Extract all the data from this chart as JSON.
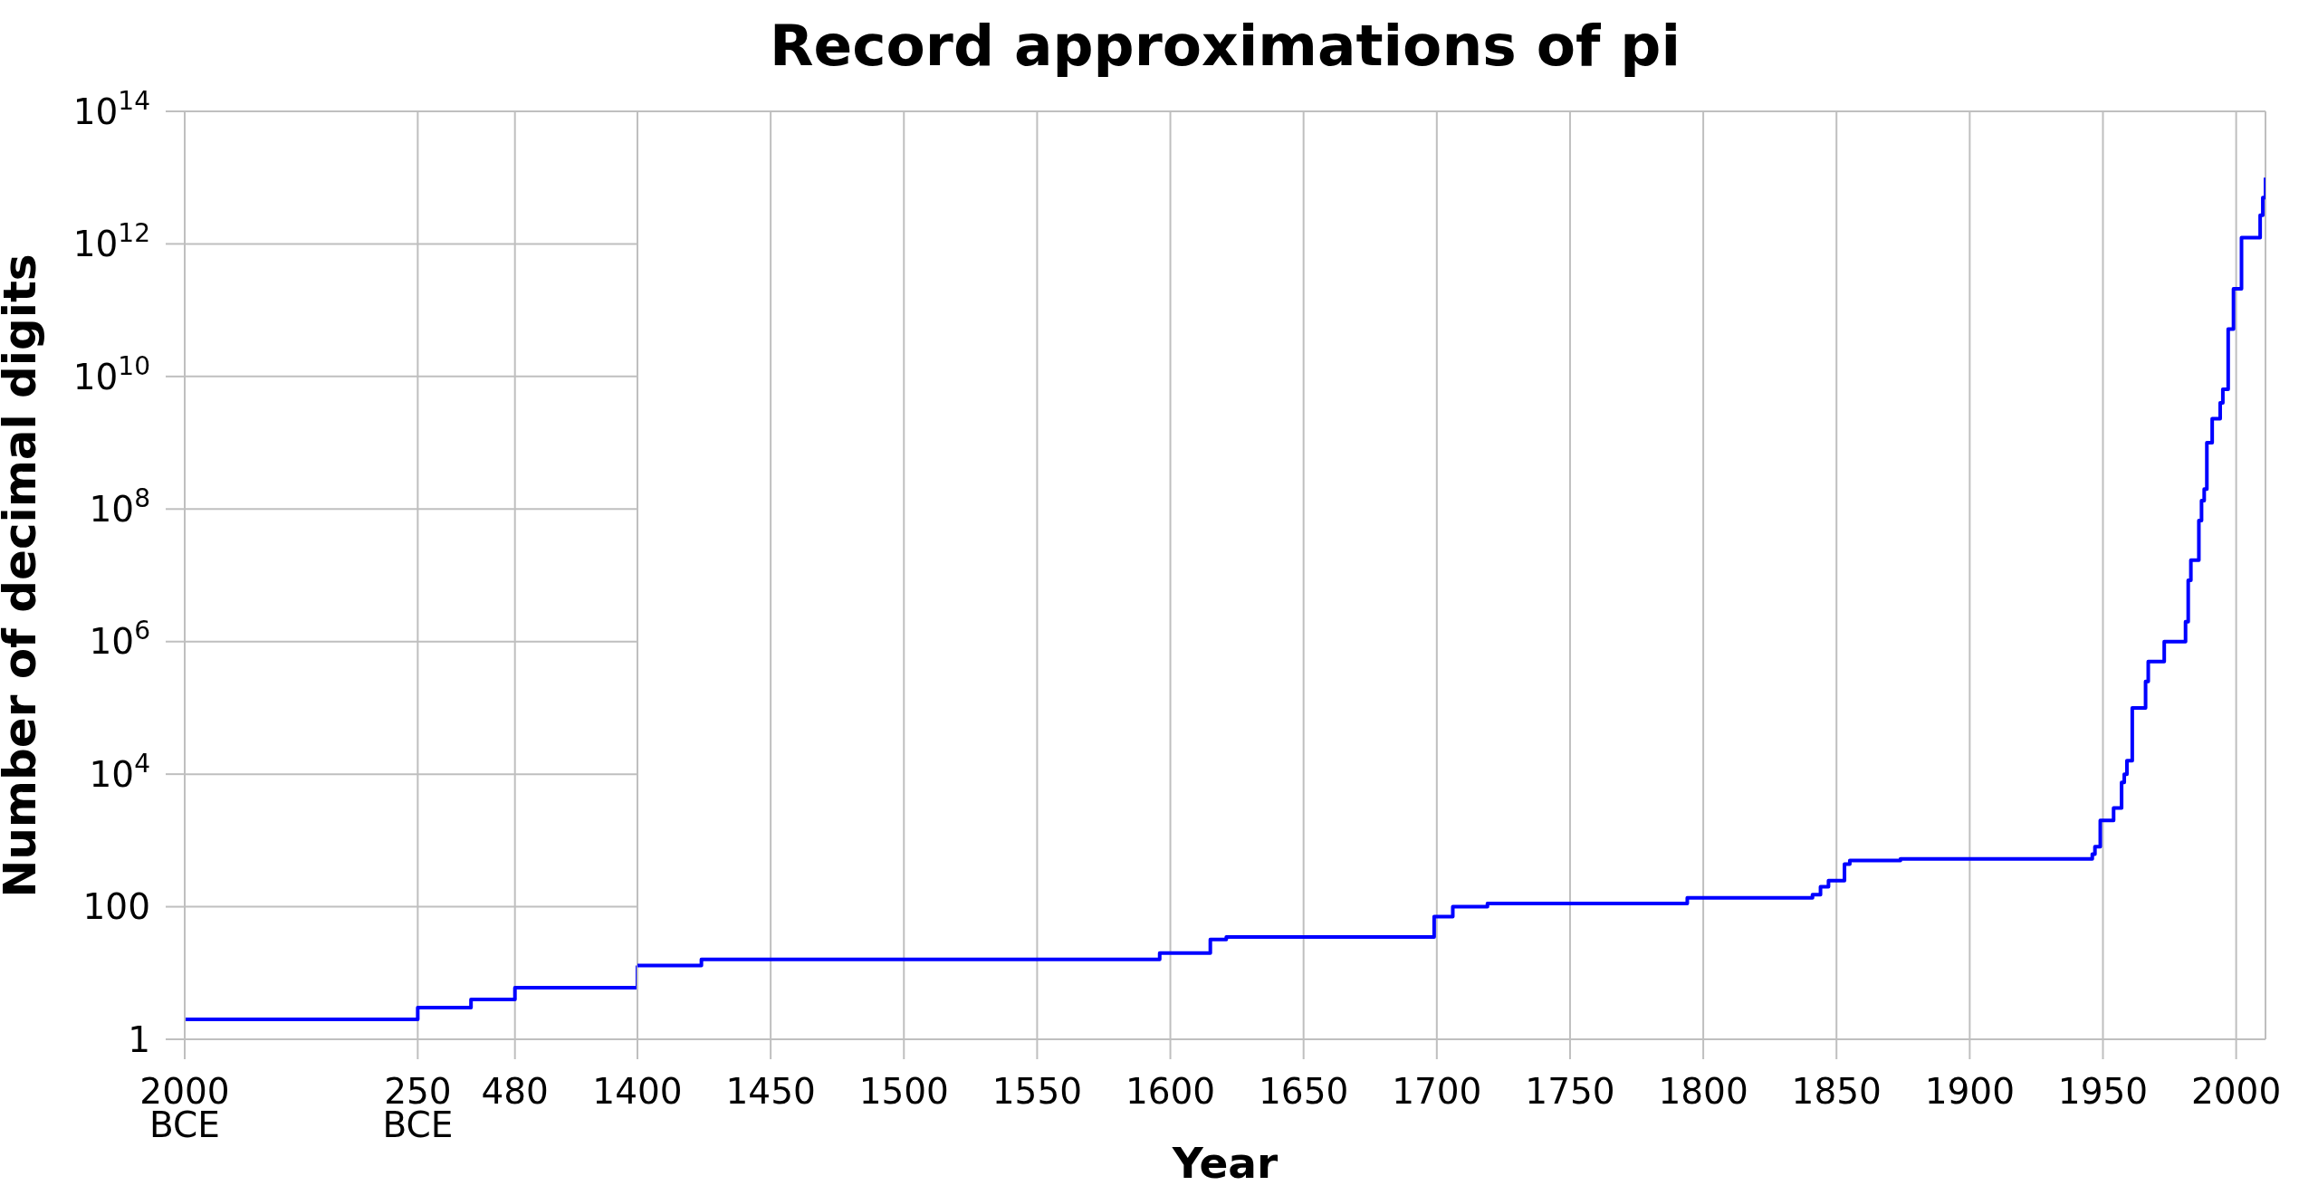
{
  "chart_data": [
    {
      "type": "step",
      "ylabel": "Number of decimal digits",
      "x": [
        -2000,
        -250,
        150,
        480,
        1400
      ],
      "values": [
        2,
        3,
        4,
        6,
        13
      ],
      "color": "#0000ff",
      "xlim": [
        -2000,
        1400
      ],
      "xticks": [
        {
          "value": -2000,
          "label": "2000 BCE"
        },
        {
          "value": -250,
          "label": "250 BCE"
        },
        480
      ],
      "ylim": [
        1,
        100000000000000
      ],
      "yticks": [
        1,
        100,
        {
          "value": 10000,
          "label": "10$^{4}$"
        },
        {
          "value": 1000000,
          "label": "10$^{6}$"
        },
        {
          "value": 100000000,
          "label": "10$^{8}$"
        },
        {
          "value": 10000000000,
          "label": "10$^{10}$"
        },
        {
          "value": 1000000000000,
          "label": "10$^{12}$"
        },
        {
          "value": 100000000000000,
          "label": "10$^{14}$"
        }
      ],
      "log": true,
      "grid": true
    },
    {
      "type": "step",
      "title": "Record approximations of pi",
      "xlabel": "Year",
      "x": [
        1400,
        1424,
        1596,
        1615,
        1621,
        1699,
        1706,
        1719,
        1794,
        1841,
        1844,
        1847,
        1853,
        1855,
        1874,
        1946,
        1947,
        1949,
        1954,
        1957,
        1958,
        1959,
        1961,
        1966,
        1967,
        1973,
        1981,
        1982,
        1983,
        1986,
        1987,
        1988,
        1989,
        1991,
        1994,
        1995,
        1997,
        1999,
        2002,
        2009,
        2010,
        2011
      ],
      "values": [
        13,
        16,
        20,
        32,
        35,
        71,
        100,
        112,
        136,
        152,
        200,
        248,
        440,
        500,
        527,
        620,
        808,
        2000,
        3100,
        7500,
        10000,
        16000,
        100000,
        250000,
        500000,
        1000000,
        2000000,
        8400000,
        17000000,
        67000000,
        134000000,
        200000000,
        1000000000,
        2300000000,
        4000000000,
        6400000000,
        52000000000,
        210000000000,
        1240000000000,
        2700000000000,
        5000000000000,
        10000000000000
      ],
      "color": "#0000ff",
      "xlim": [
        1400,
        2011
      ],
      "xticks": [
        1400,
        1450,
        1500,
        1550,
        1600,
        1650,
        1700,
        1750,
        1800,
        1850,
        1900,
        1950,
        2000
      ],
      "ylim": [
        1,
        100000000000000
      ],
      "yticks": [
        1,
        100,
        10000,
        1000000,
        100000000,
        10000000000,
        1000000000000,
        100000000000000
      ],
      "log": true,
      "grid": true,
      "tick_labels": "x"
    }
  ]
}
